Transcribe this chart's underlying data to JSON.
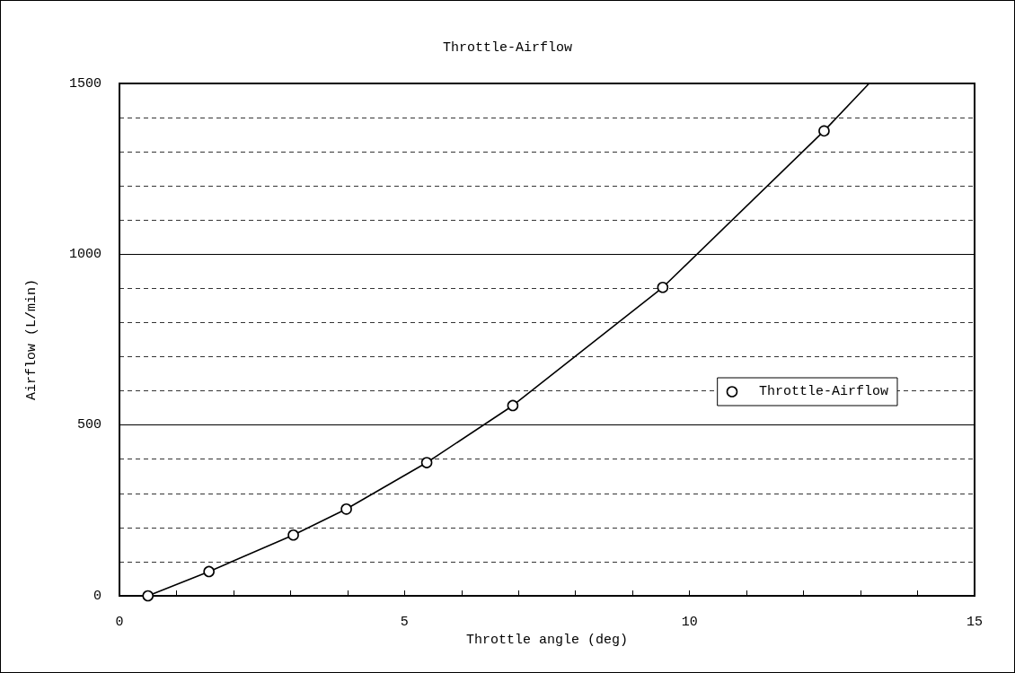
{
  "chart_data": {
    "type": "line",
    "title": "Throttle-Airflow",
    "xlabel": "Throttle angle (deg)",
    "ylabel": "Airflow (L/min)",
    "series": [
      {
        "name": "Throttle-Airflow",
        "color": "#000000",
        "x": [
          0.5,
          1.57,
          3.05,
          3.98,
          5.39,
          6.9,
          9.53,
          12.36,
          13.15
        ],
        "values": [
          0,
          71,
          178,
          254,
          390,
          557,
          903,
          1361,
          1500
        ]
      }
    ],
    "xlim": [
      0,
      15
    ],
    "xticks": [
      0,
      5,
      10,
      15
    ],
    "ylim": [
      0,
      1500
    ],
    "yticks": [
      0,
      500,
      {
        "value": 1000,
        "label": "1000"
      },
      {
        "value": 1500,
        "label": "1500"
      }
    ],
    "grid": "y",
    "legend": "right",
    "marker": "circle",
    "line_style": "solid"
  }
}
